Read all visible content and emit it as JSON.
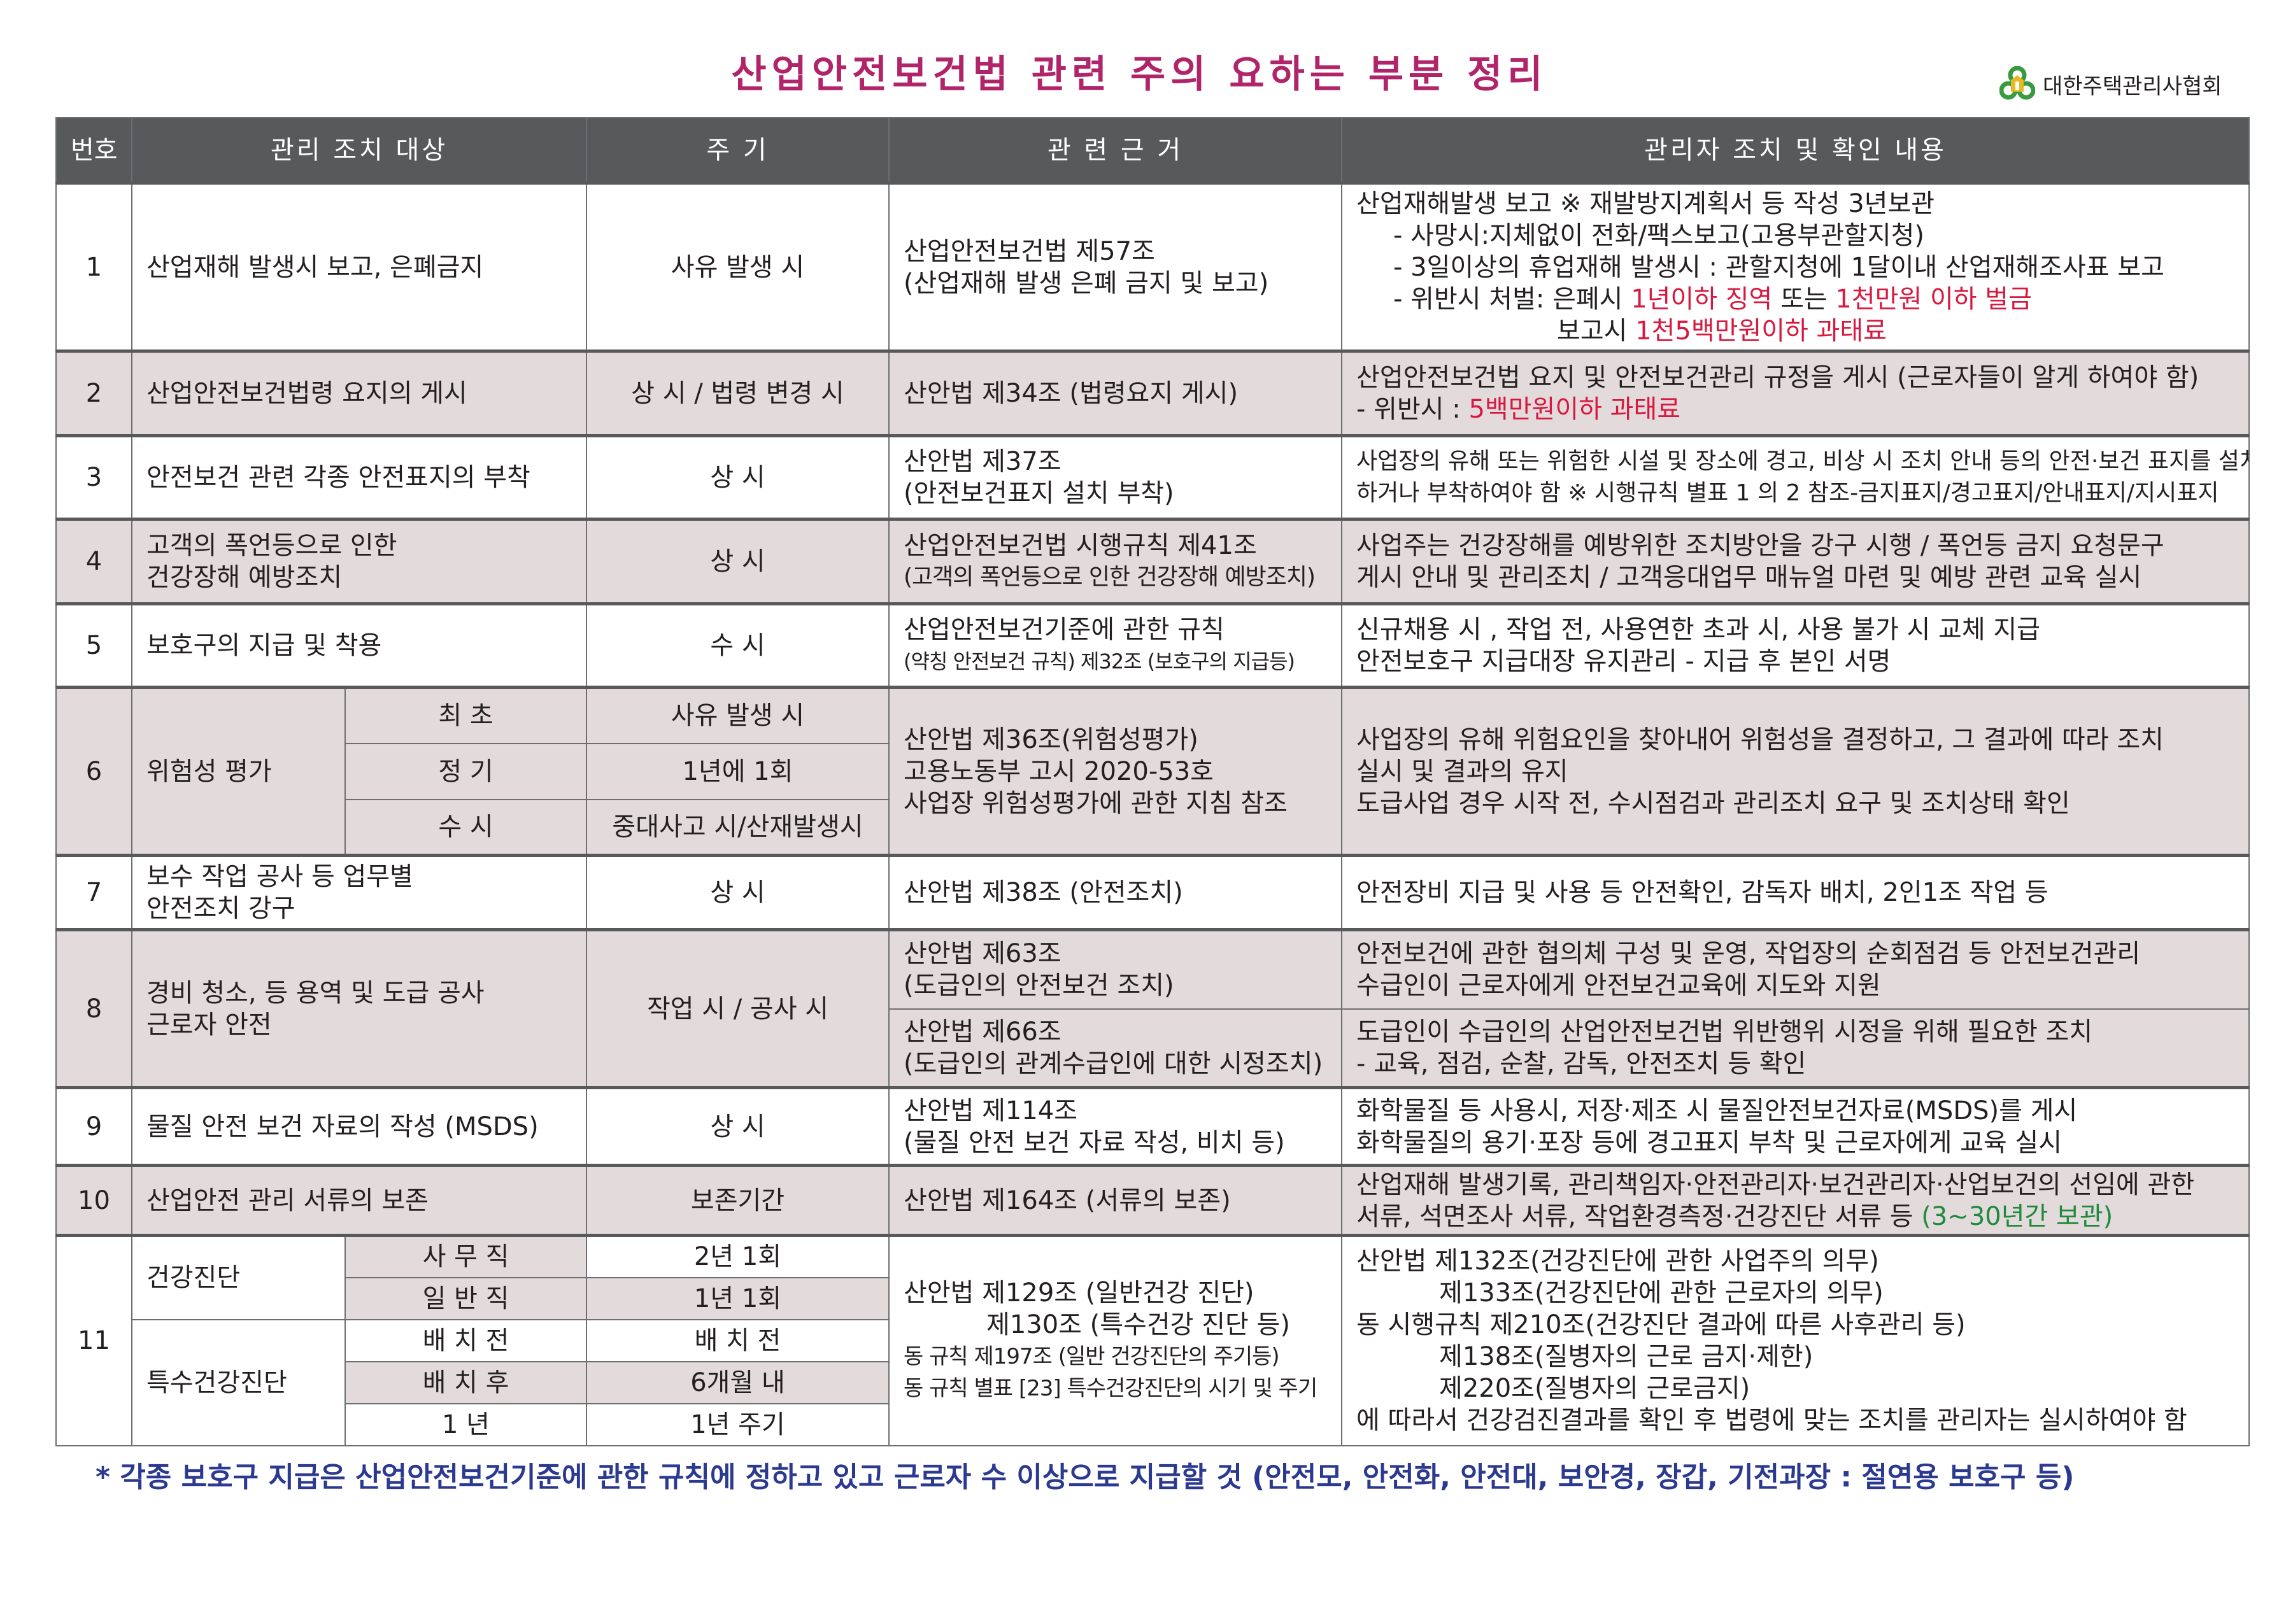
{
  "title": "산업안전보건법 관련 주의 요하는 부분 정리",
  "logo": {
    "text": "대한주택관리사협회",
    "icon": "house-circles-logo-icon",
    "colors": {
      "green": "#3a9a3f",
      "gold": "#e8b820"
    }
  },
  "header": [
    "번호",
    "관리 조치 대상",
    "주 기",
    "관 련 근 거",
    "관리자 조치 및 확인 내용"
  ],
  "colors": {
    "header_bg": "#58595b",
    "shaded_row": "#e3dadc",
    "title": "#b0246a",
    "penalty": "#d7193f",
    "retention": "#1e8a3c",
    "footer": "#2b3990"
  },
  "rows": {
    "r1": {
      "no": "1",
      "target": "산업재해 발생시 보고, 은폐금지",
      "period": "사유 발생 시",
      "basis": [
        "산업안전보건법 제57조",
        "(산업재해 발생 은폐 금지 및 보고)"
      ],
      "content": {
        "l1": "산업재해발생 보고 ※ 재발방지계획서 등 작성 3년보관",
        "l2": "- 사망시:지체없이 전화/팩스보고(고용부관할지청)",
        "l3": "- 3일이상의 휴업재해 발생시 : 관할지청에 1달이내 산업재해조사표 보고",
        "l4a": "- 위반시 처벌: 은폐시 ",
        "l4b": "1년이하 징역",
        "l4c": " 또는 ",
        "l4d": "1천만원 이하 벌금",
        "l5a": "보고시 ",
        "l5b": "1천5백만원이하 과태료"
      }
    },
    "r2": {
      "no": "2",
      "target": "산업안전보건법령 요지의 게시",
      "period": "상 시 / 법령 변경 시",
      "basis": [
        "산안법 제34조 (법령요지 게시)"
      ],
      "content": {
        "l1": "산업안전보건법 요지 및 안전보건관리 규정을 게시 (근로자들이 알게 하여야 함)",
        "l2a": " - 위반시 : ",
        "l2b": "5백만원이하 과태료"
      }
    },
    "r3": {
      "no": "3",
      "target": "안전보건 관련 각종 안전표지의 부착",
      "period": "상 시",
      "basis": [
        "산안법 제37조",
        "(안전보건표지 설치 부착)"
      ],
      "content": [
        "사업장의 유해 또는 위험한 시설 및 장소에 경고, 비상 시 조치 안내 등의 안전·보건 표지를 설치",
        "하거나 부착하여야 함 ※ 시행규칙 별표 1 의 2 참조-금지표지/경고표지/안내표지/지시표지"
      ]
    },
    "r4": {
      "no": "4",
      "target": [
        "고객의 폭언등으로 인한",
        "건강장해 예방조치"
      ],
      "period": "상 시",
      "basis": [
        "산업안전보건법 시행규칙 제41조",
        "(고객의 폭언등으로 인한 건강장해 예방조치)"
      ],
      "content": [
        "사업주는 건강장해를 예방위한 조치방안을 강구 시행 / 폭언등 금지 요청문구",
        "게시 안내 및 관리조치 / 고객응대업무 매뉴얼 마련 및 예방 관련 교육 실시"
      ]
    },
    "r5": {
      "no": "5",
      "target": "보호구의 지급 및 착용",
      "period": "수 시",
      "basis": [
        "산업안전보건기준에 관한 규칙",
        "(약칭 안전보건 규칙) 제32조 (보호구의 지급등)"
      ],
      "content": [
        "신규채용 시 , 작업 전, 사용연한 초과 시, 사용 불가 시 교체 지급",
        "안전보호구 지급대장 유지관리 - 지급 후 본인 서명"
      ]
    },
    "r6": {
      "no": "6",
      "target": "위험성 평가",
      "sub": [
        {
          "label": "최 초",
          "period": "사유 발생 시"
        },
        {
          "label": "정 기",
          "period": "1년에 1회"
        },
        {
          "label": "수 시",
          "period": "중대사고 시/산재발생시"
        }
      ],
      "basis": [
        "산안법 제36조(위험성평가)",
        "고용노동부 고시 2020-53호",
        "사업장 위험성평가에 관한 지침 참조"
      ],
      "content": [
        "사업장의 유해 위험요인을 찾아내어 위험성을 결정하고, 그 결과에 따라 조치",
        "실시 및 결과의 유지",
        "도급사업 경우 시작 전, 수시점검과 관리조치 요구 및 조치상태 확인"
      ]
    },
    "r7": {
      "no": "7",
      "target": [
        "보수 작업 공사 등 업무별",
        "안전조치 강구"
      ],
      "period": "상 시",
      "basis": [
        "산안법 제38조 (안전조치)"
      ],
      "content": [
        "안전장비 지급 및 사용 등 안전확인, 감독자 배치, 2인1조 작업 등"
      ]
    },
    "r8": {
      "no": "8",
      "target": [
        "경비 청소, 등 용역 및 도급 공사",
        "근로자 안전"
      ],
      "period": "작업 시 / 공사 시",
      "parts": [
        {
          "basis": [
            "산안법 제63조",
            "(도급인의 안전보건 조치)"
          ],
          "content": [
            "안전보건에 관한 협의체 구성 및 운영, 작업장의 순회점검 등 안전보건관리",
            "수급인이 근로자에게 안전보건교육에 지도와 지원"
          ]
        },
        {
          "basis": [
            "산안법 제66조",
            "(도급인의 관계수급인에 대한 시정조치)"
          ],
          "content": [
            "도급인이 수급인의 산업안전보건법 위반행위 시정을 위해 필요한 조치",
            " - 교육, 점검, 순찰, 감독, 안전조치 등 확인"
          ]
        }
      ]
    },
    "r9": {
      "no": "9",
      "target": "물질 안전 보건 자료의 작성 (MSDS)",
      "period": "상 시",
      "basis": [
        "산안법 제114조",
        "(물질 안전 보건 자료 작성, 비치 등)"
      ],
      "content": [
        "화학물질 등 사용시, 저장·제조 시 물질안전보건자료(MSDS)를 게시",
        "화학물질의 용기·포장 등에 경고표지 부착 및 근로자에게 교육 실시"
      ]
    },
    "r10": {
      "no": "10",
      "target": "산업안전 관리 서류의 보존",
      "period": "보존기간",
      "basis": [
        "산안법 제164조 (서류의 보존)"
      ],
      "content": {
        "l1": "산업재해 발생기록, 관리책임자·안전관리자·보건관리자·산업보건의 선임에 관한",
        "l2a": "서류, 석면조사 서류, 작업환경측정·건강진단 서류 등 ",
        "l2b": "(3~30년간 보관)"
      }
    },
    "r11": {
      "no": "11",
      "group1": "건강진단",
      "group2": "특수건강진단",
      "sub": [
        {
          "label": "사 무 직",
          "period": "2년 1회"
        },
        {
          "label": "일 반 직",
          "period": "1년 1회"
        },
        {
          "label": "배 치 전",
          "period": "배 치 전"
        },
        {
          "label": "배 치 후",
          "period": "6개월 내"
        },
        {
          "label": "1 년",
          "period": "1년 주기"
        }
      ],
      "basis": [
        "산안법 제129조 (일반건강 진단)",
        "제130조 (특수건강 진단 등)",
        "동 규칙 제197조 (일반 건강진단의 주기등)",
        "동 규칙 별표 [23] 특수건강진단의 시기 및 주기"
      ],
      "content": [
        "산안법 제132조(건강진단에 관한 사업주의 의무)",
        "제133조(건강진단에 관한 근로자의 의무)",
        "동 시행규칙 제210조(건강진단 결과에 따른 사후관리 등)",
        "제138조(질병자의 근로 금지·제한)",
        "제220조(질병자의 근로금지)",
        "에 따라서 건강검진결과를 확인 후 법령에 맞는 조치를 관리자는 실시하여야 함"
      ]
    }
  },
  "footer": "* 각종 보호구 지급은 산업안전보건기준에 관한 규칙에 정하고 있고 근로자 수 이상으로 지급할 것  (안전모, 안전화, 안전대, 보안경, 장갑, 기전과장 : 절연용 보호구 등)"
}
